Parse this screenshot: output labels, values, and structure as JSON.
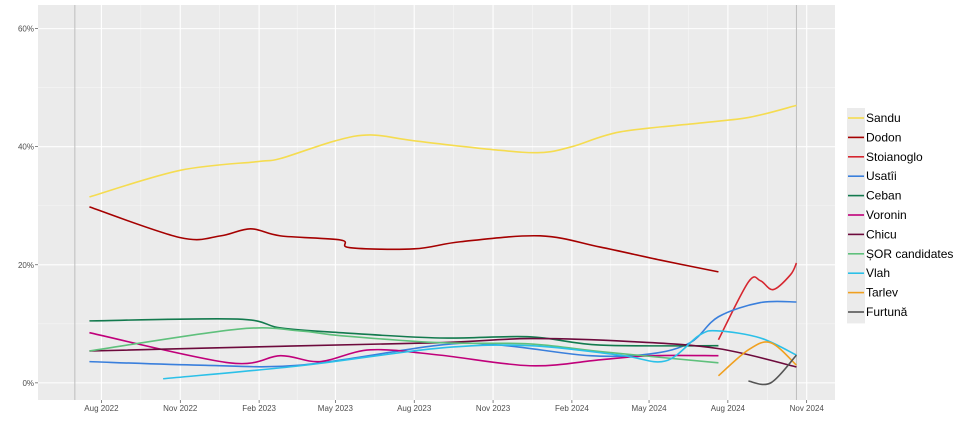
{
  "chart_data": {
    "type": "line",
    "title": "",
    "xlabel": "",
    "ylabel": "",
    "xlim": [
      "2022-05-19",
      "2024-12-04"
    ],
    "ylim": [
      -2.9,
      64
    ],
    "x_ticks": [
      {
        "date": "2022-08-01",
        "label": "Aug 2022"
      },
      {
        "date": "2022-11-01",
        "label": "Nov 2022"
      },
      {
        "date": "2023-02-01",
        "label": "Feb 2023"
      },
      {
        "date": "2023-05-01",
        "label": "May 2023"
      },
      {
        "date": "2023-08-01",
        "label": "Aug 2023"
      },
      {
        "date": "2023-11-01",
        "label": "Nov 2023"
      },
      {
        "date": "2024-02-01",
        "label": "Feb 2024"
      },
      {
        "date": "2024-05-01",
        "label": "May 2024"
      },
      {
        "date": "2024-08-01",
        "label": "Aug 2024"
      },
      {
        "date": "2024-11-01",
        "label": "Nov 2024"
      }
    ],
    "y_ticks": [
      {
        "value": 0,
        "label": "0%"
      },
      {
        "value": 20,
        "label": "20%"
      },
      {
        "value": 40,
        "label": "40%"
      },
      {
        "value": 60,
        "label": "60%"
      }
    ],
    "grid": true,
    "legend_position": "right",
    "reference_lines": [
      "2022-07-01",
      "2024-10-20"
    ],
    "series": [
      {
        "name": "Sandu",
        "color": "#f5dc50",
        "points": [
          [
            "2022-07-18",
            31.5
          ],
          [
            "2022-11-01",
            36
          ],
          [
            "2023-02-01",
            37.5
          ],
          [
            "2023-02-26",
            38
          ],
          [
            "2023-05-01",
            41
          ],
          [
            "2023-06-11",
            42
          ],
          [
            "2023-08-01",
            41
          ],
          [
            "2023-11-01",
            39.5
          ],
          [
            "2023-12-26",
            39
          ],
          [
            "2024-02-01",
            40
          ],
          [
            "2024-03-28",
            42.5
          ],
          [
            "2024-06-29",
            44
          ],
          [
            "2024-08-27",
            45
          ],
          [
            "2024-10-20",
            47
          ]
        ]
      },
      {
        "name": "Dodon",
        "color": "#a50000",
        "points": [
          [
            "2022-07-18",
            29.8
          ],
          [
            "2022-11-01",
            24.6
          ],
          [
            "2022-12-18",
            24.9
          ],
          [
            "2023-01-22",
            26.1
          ],
          [
            "2023-02-26",
            24.9
          ],
          [
            "2023-05-07",
            24.2
          ],
          [
            "2023-05-18",
            22.9
          ],
          [
            "2023-08-01",
            22.7
          ],
          [
            "2023-09-24",
            23.9
          ],
          [
            "2023-12-26",
            24.9
          ],
          [
            "2024-03-05",
            23
          ],
          [
            "2024-05-14",
            20.8
          ],
          [
            "2024-07-21",
            18.8
          ]
        ]
      },
      {
        "name": "Stoianoglo",
        "color": "#d6262f",
        "points": [
          [
            "2024-07-21",
            7.3
          ],
          [
            "2024-08-25",
            17.1
          ],
          [
            "2024-09-08",
            17.3
          ],
          [
            "2024-09-23",
            15.8
          ],
          [
            "2024-10-13",
            18.3
          ],
          [
            "2024-10-20",
            20.3
          ]
        ]
      },
      {
        "name": "Usatîi",
        "color": "#3a7fdc",
        "points": [
          [
            "2022-07-18",
            3.6
          ],
          [
            "2022-11-24",
            3
          ],
          [
            "2023-03-21",
            3
          ],
          [
            "2023-08-31",
            6.4
          ],
          [
            "2023-11-09",
            6.4
          ],
          [
            "2024-02-22",
            4.6
          ],
          [
            "2024-05-02",
            4.9
          ],
          [
            "2024-06-18",
            6.8
          ],
          [
            "2024-07-21",
            11.2
          ],
          [
            "2024-09-08",
            13.6
          ],
          [
            "2024-10-20",
            13.7
          ]
        ]
      },
      {
        "name": "Ceban",
        "color": "#137a4e",
        "points": [
          [
            "2022-07-18",
            10.5
          ],
          [
            "2023-01-07",
            10.8
          ],
          [
            "2023-02-26",
            9.3
          ],
          [
            "2023-05-07",
            8.5
          ],
          [
            "2023-08-31",
            7.6
          ],
          [
            "2023-12-14",
            7.8
          ],
          [
            "2024-03-05",
            6.4
          ],
          [
            "2024-07-21",
            6.3
          ]
        ]
      },
      {
        "name": "Voronin",
        "color": "#c0007a",
        "points": [
          [
            "2022-07-18",
            8.5
          ],
          [
            "2022-12-28",
            3.4
          ],
          [
            "2023-02-26",
            4.6
          ],
          [
            "2023-04-13",
            3.6
          ],
          [
            "2023-06-11",
            5.6
          ],
          [
            "2023-08-31",
            4.7
          ],
          [
            "2023-12-14",
            2.9
          ],
          [
            "2024-03-05",
            3.9
          ],
          [
            "2024-05-02",
            4.6
          ],
          [
            "2024-07-21",
            4.6
          ]
        ]
      },
      {
        "name": "Chicu",
        "color": "#6d0a3c",
        "points": [
          [
            "2022-07-18",
            5.4
          ],
          [
            "2023-02-26",
            6.2
          ],
          [
            "2023-08-31",
            6.8
          ],
          [
            "2023-12-14",
            7.5
          ],
          [
            "2024-04-09",
            7
          ],
          [
            "2024-07-21",
            5.8
          ],
          [
            "2024-10-20",
            2.7
          ]
        ]
      },
      {
        "name": "ȘOR candidates",
        "color": "#5fc07c",
        "points": [
          [
            "2022-07-18",
            5.4
          ],
          [
            "2023-01-07",
            9.1
          ],
          [
            "2023-03-21",
            8.8
          ],
          [
            "2023-05-07",
            8
          ],
          [
            "2023-08-31",
            6.8
          ],
          [
            "2023-12-14",
            6.6
          ],
          [
            "2024-03-05",
            5.3
          ],
          [
            "2024-07-21",
            3.4
          ]
        ]
      },
      {
        "name": "Vlah",
        "color": "#2bc0e8",
        "points": [
          [
            "2022-10-12",
            0.7
          ],
          [
            "2023-03-21",
            2.9
          ],
          [
            "2023-08-31",
            5.9
          ],
          [
            "2023-12-14",
            6.3
          ],
          [
            "2024-03-28",
            4.7
          ],
          [
            "2024-05-20",
            3.7
          ],
          [
            "2024-06-29",
            8.1
          ],
          [
            "2024-07-21",
            8.8
          ],
          [
            "2024-09-08",
            7.6
          ],
          [
            "2024-10-20",
            4.7
          ]
        ]
      },
      {
        "name": "Tarlev",
        "color": "#f0a020",
        "points": [
          [
            "2024-07-21",
            1.2
          ],
          [
            "2024-08-25",
            5.6
          ],
          [
            "2024-09-20",
            6.8
          ],
          [
            "2024-10-20",
            3
          ]
        ]
      },
      {
        "name": "Furtună",
        "color": "#555555",
        "points": [
          [
            "2024-08-25",
            0.3
          ],
          [
            "2024-09-20",
            0
          ],
          [
            "2024-10-20",
            4.7
          ]
        ]
      }
    ]
  }
}
